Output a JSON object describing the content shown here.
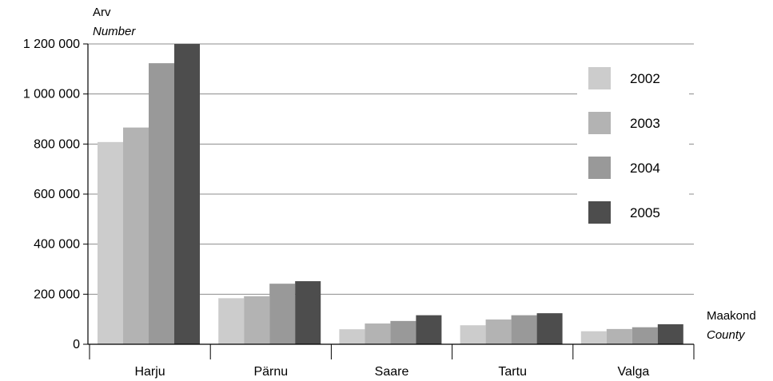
{
  "chart_data": {
    "type": "bar",
    "ylabel": "Arv",
    "ylabel_en": "Number",
    "xlabel": "Maakond",
    "xlabel_en": "County",
    "categories": [
      "Harju",
      "Pärnu",
      "Saare",
      "Tartu",
      "Valga"
    ],
    "series": [
      {
        "name": "2002",
        "color": "#cccccc",
        "values": [
          808000,
          184000,
          60000,
          76000,
          52000
        ]
      },
      {
        "name": "2003",
        "color": "#b3b3b3",
        "values": [
          866000,
          192000,
          83000,
          99000,
          61000
        ]
      },
      {
        "name": "2004",
        "color": "#999999",
        "values": [
          1123000,
          242000,
          93000,
          116000,
          68000
        ]
      },
      {
        "name": "2005",
        "color": "#4d4d4d",
        "values": [
          1200000,
          252000,
          116000,
          124000,
          80000
        ]
      }
    ],
    "ylim": [
      0,
      1200000
    ],
    "yticks": [
      0,
      200000,
      400000,
      600000,
      800000,
      1000000,
      1200000
    ],
    "ytick_labels": [
      "0",
      "200 000",
      "400 000",
      "600 000",
      "800 000",
      "1 000 000",
      "1 200 000"
    ],
    "grid": true,
    "legend_position": "right"
  }
}
